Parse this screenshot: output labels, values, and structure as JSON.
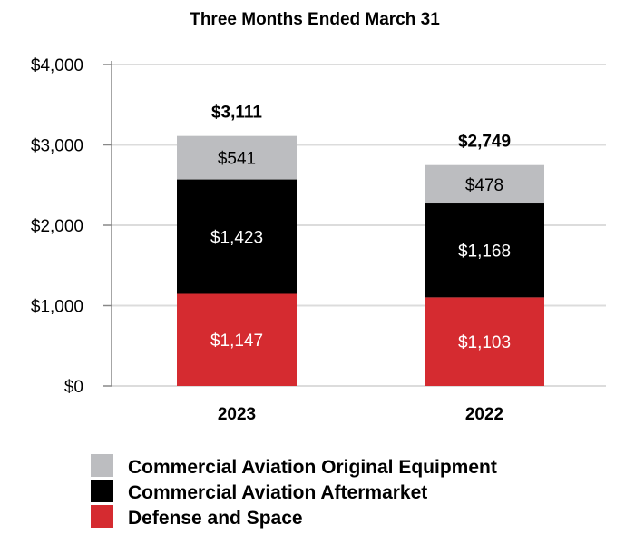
{
  "chart_data": {
    "type": "bar",
    "stacked": true,
    "title": "Three Months Ended March 31",
    "xlabel": "",
    "ylabel": "",
    "ylim": [
      0,
      4000
    ],
    "yticks": [
      0,
      1000,
      2000,
      3000,
      4000
    ],
    "ytick_labels": [
      "$0",
      "$1,000",
      "$2,000",
      "$3,000",
      "$4,000"
    ],
    "grid": true,
    "categories": [
      "2023",
      "2022"
    ],
    "totals": [
      3111,
      2749
    ],
    "total_labels": [
      "$3,111",
      "$2,749"
    ],
    "series": [
      {
        "name": "Defense and Space",
        "color": "#d52b30",
        "label_color": "#ffffff",
        "values": [
          1147,
          1103
        ],
        "labels": [
          "$1,147",
          "$1,103"
        ]
      },
      {
        "name": "Commercial Aviation Aftermarket",
        "color": "#000000",
        "label_color": "#ffffff",
        "values": [
          1423,
          1168
        ],
        "labels": [
          "$1,423",
          "$1,168"
        ]
      },
      {
        "name": "Commercial Aviation Original Equipment",
        "color": "#bcbdc0",
        "label_color": "#000000",
        "values": [
          541,
          478
        ],
        "labels": [
          "$541",
          "$478"
        ]
      }
    ],
    "legend": {
      "placement": "bottom",
      "entries": [
        "Commercial Aviation Original Equipment",
        "Commercial Aviation Aftermarket",
        "Defense and Space"
      ]
    }
  }
}
